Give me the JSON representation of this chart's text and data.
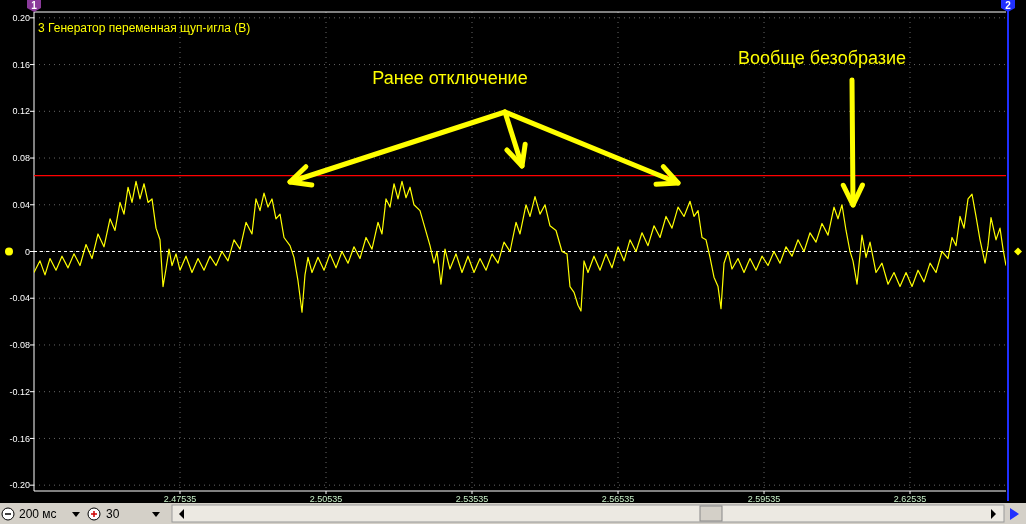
{
  "chart_data": {
    "type": "line",
    "title": "3 Генератор переменная щуп-игла (В)",
    "annotations": [
      "Ранее отключение",
      "Вообще безобразие",
      "200 мс",
      "30",
      "1",
      "2"
    ],
    "x": [
      2.44535,
      2.44658,
      2.44761,
      2.44864,
      2.44987,
      2.4511,
      2.45234,
      2.45357,
      2.4548,
      2.45604,
      2.45727,
      2.4585,
      2.45973,
      2.46097,
      2.46199,
      2.46302,
      2.46384,
      2.46467,
      2.46549,
      2.46631,
      2.46713,
      2.46795,
      2.46878,
      2.4696,
      2.47042,
      2.47124,
      2.47186,
      2.47247,
      2.47309,
      2.47371,
      2.47453,
      2.47535,
      2.47658,
      2.47781,
      2.47905,
      2.48028,
      2.48151,
      2.48275,
      2.48398,
      2.48521,
      2.48644,
      2.48768,
      2.48891,
      2.49014,
      2.49096,
      2.49179,
      2.49261,
      2.49343,
      2.49425,
      2.49507,
      2.4959,
      2.49672,
      2.49795,
      2.49877,
      2.49959,
      2.50042,
      2.50103,
      2.50165,
      2.50247,
      2.5037,
      2.50494,
      2.50617,
      2.5074,
      2.50864,
      2.50987,
      2.5111,
      2.51233,
      2.51357,
      2.5148,
      2.51603,
      2.51685,
      2.51768,
      2.5185,
      2.51932,
      2.52014,
      2.52096,
      2.52179,
      2.52261,
      2.52343,
      2.52466,
      2.52569,
      2.52672,
      2.52754,
      2.52815,
      2.52897,
      2.5298,
      2.53082,
      2.53206,
      2.53329,
      2.53452,
      2.53576,
      2.53699,
      2.53823,
      2.53946,
      2.54069,
      2.54192,
      2.54316,
      2.54439,
      2.54521,
      2.54644,
      2.54727,
      2.54829,
      2.54932,
      2.55035,
      2.55137,
      2.55261,
      2.55384,
      2.55487,
      2.55548,
      2.55631,
      2.55713,
      2.55774,
      2.55836,
      2.55918,
      2.56041,
      2.56165,
      2.56288,
      2.56411,
      2.56535,
      2.56658,
      2.56781,
      2.56905,
      2.57028,
      2.57151,
      2.57275,
      2.57398,
      2.57521,
      2.57644,
      2.57768,
      2.57891,
      2.58014,
      2.58096,
      2.58179,
      2.58261,
      2.58343,
      2.58425,
      2.58507,
      2.5859,
      2.58651,
      2.58713,
      2.58795,
      2.58877,
      2.59,
      2.59124,
      2.59247,
      2.5937,
      2.59494,
      2.59617,
      2.5974,
      2.59863,
      2.59987,
      2.6011,
      2.60233,
      2.60357,
      2.6048,
      2.60603,
      2.60726,
      2.6085,
      2.60973,
      2.61055,
      2.61137,
      2.6122,
      2.61302,
      2.61363,
      2.61446,
      2.61548,
      2.61631,
      2.61713,
      2.61836,
      2.61959,
      2.62083,
      2.62206,
      2.62329,
      2.62453,
      2.62576,
      2.62699,
      2.62822,
      2.62946,
      2.63069,
      2.63192,
      2.63316,
      2.63398,
      2.6348,
      2.63562,
      2.63644,
      2.63727,
      2.63809,
      2.63891,
      2.63973,
      2.64076,
      2.64137,
      2.64199,
      2.64302,
      2.64384,
      2.64446,
      2.64507
    ],
    "series": [
      {
        "color": "#ffff00",
        "values": [
          -0.018,
          -0.008,
          -0.02,
          -0.006,
          -0.016,
          -0.004,
          -0.014,
          -0.002,
          -0.012,
          0.006,
          -0.006,
          0.015,
          0.004,
          0.028,
          0.018,
          0.042,
          0.032,
          0.055,
          0.042,
          0.06,
          0.045,
          0.058,
          0.042,
          0.045,
          0.02,
          0.01,
          -0.03,
          -0.015,
          0.002,
          -0.012,
          -0.002,
          -0.016,
          -0.004,
          -0.018,
          -0.006,
          -0.016,
          -0.004,
          -0.012,
          0.0,
          -0.008,
          0.01,
          0.002,
          0.025,
          0.015,
          0.045,
          0.035,
          0.05,
          0.038,
          0.045,
          0.028,
          0.032,
          0.012,
          0.005,
          -0.005,
          -0.025,
          -0.052,
          -0.02,
          -0.005,
          -0.018,
          -0.005,
          -0.016,
          -0.002,
          -0.014,
          0.0,
          -0.01,
          0.004,
          -0.006,
          0.012,
          0.002,
          0.025,
          0.015,
          0.045,
          0.038,
          0.058,
          0.045,
          0.06,
          0.046,
          0.055,
          0.04,
          0.035,
          0.02,
          0.005,
          -0.01,
          0.0,
          -0.028,
          0.002,
          -0.015,
          -0.002,
          -0.018,
          -0.004,
          -0.018,
          -0.006,
          -0.016,
          -0.002,
          -0.01,
          0.008,
          0.0,
          0.025,
          0.015,
          0.04,
          0.03,
          0.047,
          0.032,
          0.04,
          0.022,
          0.018,
          0.0,
          -0.002,
          -0.03,
          -0.035,
          -0.046,
          -0.051,
          -0.008,
          -0.018,
          -0.004,
          -0.016,
          -0.002,
          -0.014,
          0.004,
          -0.008,
          0.01,
          0.0,
          0.016,
          0.005,
          0.022,
          0.012,
          0.03,
          0.02,
          0.038,
          0.03,
          0.043,
          0.03,
          0.035,
          0.012,
          0.01,
          -0.005,
          -0.022,
          -0.03,
          -0.049,
          -0.01,
          0.0,
          -0.015,
          -0.006,
          -0.018,
          -0.006,
          -0.016,
          -0.004,
          -0.012,
          0.0,
          -0.01,
          0.004,
          -0.004,
          0.01,
          0.0,
          0.016,
          0.008,
          0.024,
          0.014,
          0.038,
          0.028,
          0.04,
          0.018,
          0.0,
          -0.008,
          -0.028,
          0.014,
          -0.005,
          0.008,
          -0.018,
          -0.01,
          -0.028,
          -0.018,
          -0.03,
          -0.018,
          -0.03,
          -0.016,
          -0.026,
          -0.01,
          -0.018,
          0.0,
          -0.006,
          0.012,
          0.005,
          0.03,
          0.02,
          0.045,
          0.049,
          0.03,
          0.01,
          -0.01,
          0.005,
          0.029,
          0.01,
          0.02,
          0.002,
          -0.012
        ]
      }
    ],
    "xlim": [
      2.44535,
      2.64507
    ],
    "ylim": [
      -0.205,
      0.205
    ],
    "xticks": [
      2.47535,
      2.50535,
      2.53535,
      2.56535,
      2.59535,
      2.62535
    ],
    "yticks": [
      {
        "value": -0.2,
        "label": "-0.20"
      },
      -0.16,
      -0.12,
      -0.08,
      -0.04,
      0,
      0.04,
      0.08,
      0.12,
      0.16,
      {
        "value": 0.2,
        "label": "0.20"
      }
    ],
    "grid": true,
    "ref_lines": [
      {
        "axis": "y",
        "value": 0.065,
        "color": "#ff0000",
        "line_style": "solid"
      },
      {
        "axis": "y",
        "value": 0,
        "color": "#ffffff",
        "line_style": "dashed"
      }
    ]
  }
}
